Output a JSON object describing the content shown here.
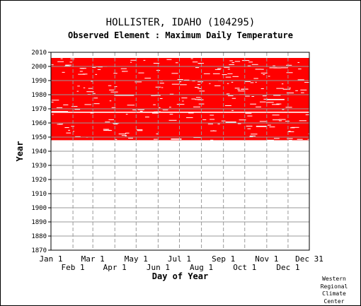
{
  "title": "HOLLISTER, IDAHO   (104295)",
  "subtitle": "Observed Element : Maximum Daily Temperature",
  "credit": [
    "Western",
    "Regional",
    "Climate",
    "Center"
  ],
  "colors": {
    "data": "#ff0000",
    "grid": "#9a9a9a",
    "axis": "#000000",
    "background": "#ffffff"
  },
  "chart_data": {
    "type": "heatmap",
    "title": "HOLLISTER, IDAHO   (104295)",
    "subtitle": "Observed Element : Maximum Daily Temperature",
    "xlabel": "Day of Year",
    "ylabel": "Year",
    "xlim": [
      1,
      365
    ],
    "ylim": [
      1870,
      2010
    ],
    "grid": true,
    "y_ticks": [
      1870,
      1880,
      1890,
      1900,
      1910,
      1920,
      1930,
      1940,
      1950,
      1960,
      1970,
      1980,
      1990,
      2000,
      2010
    ],
    "x_ticks_upper": [
      {
        "label": "Jan 1",
        "day": 1
      },
      {
        "label": "Mar 1",
        "day": 60
      },
      {
        "label": "May 1",
        "day": 121
      },
      {
        "label": "Jul 1",
        "day": 182
      },
      {
        "label": "Sep 1",
        "day": 244
      },
      {
        "label": "Nov 1",
        "day": 305
      },
      {
        "label": "Dec 31",
        "day": 365
      }
    ],
    "x_ticks_lower": [
      {
        "label": "Feb 1",
        "day": 32
      },
      {
        "label": "Apr 1",
        "day": 91
      },
      {
        "label": "Jun 1",
        "day": 152
      },
      {
        "label": "Aug 1",
        "day": 213
      },
      {
        "label": "Oct 1",
        "day": 274
      },
      {
        "label": "Dec 1",
        "day": 335
      }
    ],
    "series": [
      {
        "name": "Observed",
        "start_year": 1948,
        "end_year": 2005,
        "coverage": "nearly complete daily record with scattered gaps"
      }
    ],
    "missing_segments": [
      {
        "year": 1968,
        "start_day": 1,
        "end_day": 365
      },
      {
        "year": 1968.4,
        "start_day": 1,
        "end_day": 25
      },
      {
        "year": 1980,
        "start_day": 90,
        "end_day": 118
      },
      {
        "year": 1961,
        "start_day": 247,
        "end_day": 262
      },
      {
        "year": 1958,
        "start_day": 290,
        "end_day": 305
      },
      {
        "year": 1949,
        "start_day": 170,
        "end_day": 185
      },
      {
        "year": 1977,
        "start_day": 305,
        "end_day": 330
      }
    ]
  }
}
